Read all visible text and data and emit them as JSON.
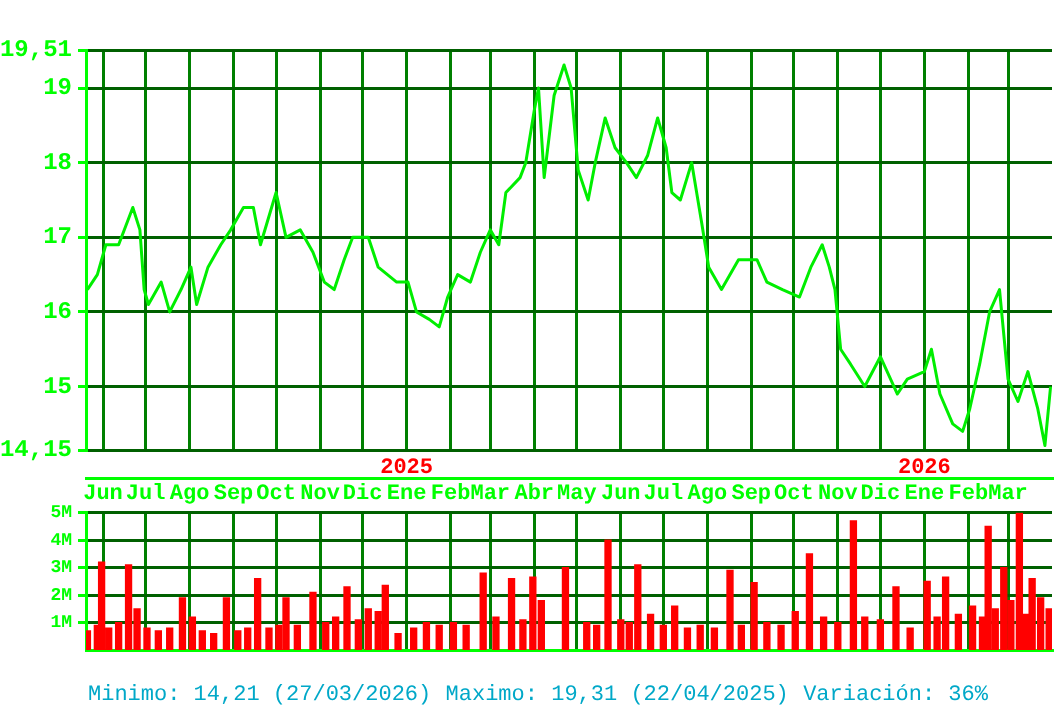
{
  "chart_data": [
    {
      "type": "line",
      "x": [
        "2024-05-21",
        "2024-05-28",
        "2024-06-03",
        "2024-06-12",
        "2024-06-22",
        "2024-06-27",
        "2024-06-30",
        "2024-07-03",
        "2024-07-12",
        "2024-07-18",
        "2024-07-26",
        "2024-08-02",
        "2024-08-06",
        "2024-08-14",
        "2024-08-23",
        "2024-08-30",
        "2024-09-08",
        "2024-09-15",
        "2024-09-20",
        "2024-10-01",
        "2024-10-08",
        "2024-10-18",
        "2024-10-27",
        "2024-11-04",
        "2024-11-11",
        "2024-11-18",
        "2024-11-24",
        "2024-12-05",
        "2024-12-12",
        "2024-12-25",
        "2025-01-02",
        "2025-01-08",
        "2025-01-17",
        "2025-01-24",
        "2025-01-30",
        "2025-02-06",
        "2025-02-15",
        "2025-02-22",
        "2025-03-01",
        "2025-03-07",
        "2025-03-12",
        "2025-03-22",
        "2025-03-26",
        "2025-04-01",
        "2025-04-04",
        "2025-04-08",
        "2025-04-15",
        "2025-04-22",
        "2025-04-27",
        "2025-05-02",
        "2025-05-09",
        "2025-05-14",
        "2025-05-21",
        "2025-05-28",
        "2025-06-05",
        "2025-06-12",
        "2025-06-20",
        "2025-06-27",
        "2025-07-03",
        "2025-07-07",
        "2025-07-13",
        "2025-07-21",
        "2025-07-28",
        "2025-08-02",
        "2025-08-11",
        "2025-08-23",
        "2025-09-05",
        "2025-09-12",
        "2025-09-23",
        "2025-10-05",
        "2025-10-13",
        "2025-10-21",
        "2025-10-26",
        "2025-10-30",
        "2025-11-03",
        "2025-11-10",
        "2025-11-20",
        "2025-12-01",
        "2025-12-13",
        "2025-12-20",
        "2026-01-01",
        "2026-01-06",
        "2026-01-12",
        "2026-01-21",
        "2026-01-28",
        "2026-02-02",
        "2026-02-09",
        "2026-02-16",
        "2026-02-23",
        "2026-03-01",
        "2026-03-08",
        "2026-03-15",
        "2026-03-22",
        "2026-03-27",
        "2026-03-31"
      ],
      "series": [
        {
          "color": "#00ee00",
          "values": [
            16.3,
            16.5,
            16.9,
            16.9,
            17.4,
            17.1,
            16.3,
            16.1,
            16.4,
            16.0,
            16.3,
            16.6,
            16.1,
            16.6,
            16.9,
            17.1,
            17.4,
            17.4,
            16.9,
            17.6,
            17.0,
            17.1,
            16.8,
            16.4,
            16.3,
            16.7,
            17.0,
            17.0,
            16.6,
            16.4,
            16.4,
            16.0,
            15.9,
            15.8,
            16.2,
            16.5,
            16.4,
            16.8,
            17.1,
            16.9,
            17.6,
            17.8,
            18.0,
            18.7,
            19.0,
            17.8,
            18.9,
            19.31,
            19.0,
            17.9,
            17.5,
            18.0,
            18.6,
            18.2,
            18.0,
            17.8,
            18.1,
            18.6,
            18.2,
            17.6,
            17.5,
            18.0,
            17.2,
            16.6,
            16.3,
            16.7,
            16.7,
            16.4,
            16.3,
            16.2,
            16.6,
            16.9,
            16.6,
            16.3,
            15.5,
            15.3,
            15.0,
            15.4,
            14.9,
            15.1,
            15.2,
            15.5,
            14.9,
            14.5,
            14.4,
            14.7,
            15.3,
            16.0,
            16.3,
            15.1,
            14.8,
            15.2,
            14.7,
            14.21,
            15.0
          ]
        }
      ],
      "xlim": [
        "2024-05-20",
        "2026-04-01"
      ],
      "xticks": [
        {
          "value": "2024-06-01",
          "label": "Jun"
        },
        {
          "value": "2024-07-01",
          "label": "Jul"
        },
        {
          "value": "2024-08-01",
          "label": "Ago"
        },
        {
          "value": "2024-09-01",
          "label": "Sep"
        },
        {
          "value": "2024-10-01",
          "label": "Oct"
        },
        {
          "value": "2024-11-01",
          "label": "Nov"
        },
        {
          "value": "2024-12-01",
          "label": "Dic"
        },
        {
          "value": "2025-01-01",
          "label": "Ene"
        },
        {
          "value": "2025-02-01",
          "label": "Feb"
        },
        {
          "value": "2025-03-01",
          "label": "Mar"
        },
        {
          "value": "2025-04-01",
          "label": "Abr"
        },
        {
          "value": "2025-05-01",
          "label": "May"
        },
        {
          "value": "2025-06-01",
          "label": "Jun"
        },
        {
          "value": "2025-07-01",
          "label": "Jul"
        },
        {
          "value": "2025-08-01",
          "label": "Ago"
        },
        {
          "value": "2025-09-01",
          "label": "Sep"
        },
        {
          "value": "2025-10-01",
          "label": "Oct"
        },
        {
          "value": "2025-11-01",
          "label": "Nov"
        },
        {
          "value": "2025-12-01",
          "label": "Dic"
        },
        {
          "value": "2026-01-01",
          "label": "Ene"
        },
        {
          "value": "2026-02-01",
          "label": "Feb"
        },
        {
          "value": "2026-03-01",
          "label": "Mar"
        }
      ],
      "ylim": [
        14.15,
        19.51
      ],
      "yticks": [
        {
          "value": 14.15,
          "label": "14,15"
        },
        15,
        16,
        17,
        18,
        19,
        {
          "value": 19.51,
          "label": "19,51"
        }
      ],
      "x2lim": [
        "2024-05-20",
        "2026-04-01"
      ],
      "x2ticks": [
        {
          "value": "2025-01-01",
          "label": "2025"
        },
        {
          "value": "2026-01-01",
          "label": "2026"
        }
      ],
      "grid": true
    },
    {
      "type": "bar",
      "x": [
        "2024-05-21",
        "2024-05-28",
        "2024-05-31",
        "2024-06-05",
        "2024-06-12",
        "2024-06-19",
        "2024-06-25",
        "2024-07-02",
        "2024-07-10",
        "2024-07-18",
        "2024-07-27",
        "2024-08-03",
        "2024-08-10",
        "2024-08-18",
        "2024-08-27",
        "2024-09-04",
        "2024-09-11",
        "2024-09-18",
        "2024-09-26",
        "2024-10-03",
        "2024-10-08",
        "2024-10-16",
        "2024-10-27",
        "2024-11-05",
        "2024-11-12",
        "2024-11-20",
        "2024-11-28",
        "2024-12-05",
        "2024-12-12",
        "2024-12-17",
        "2024-12-26",
        "2025-01-06",
        "2025-01-15",
        "2025-01-24",
        "2025-02-03",
        "2025-02-12",
        "2025-02-24",
        "2025-03-05",
        "2025-03-16",
        "2025-03-24",
        "2025-03-31",
        "2025-04-06",
        "2025-04-23",
        "2025-05-08",
        "2025-05-15",
        "2025-05-23",
        "2025-06-01",
        "2025-06-07",
        "2025-06-13",
        "2025-06-22",
        "2025-07-01",
        "2025-07-09",
        "2025-07-18",
        "2025-07-27",
        "2025-08-06",
        "2025-08-17",
        "2025-08-25",
        "2025-09-03",
        "2025-09-12",
        "2025-09-22",
        "2025-10-02",
        "2025-10-12",
        "2025-10-22",
        "2025-11-01",
        "2025-11-12",
        "2025-11-20",
        "2025-12-01",
        "2025-12-12",
        "2025-12-22",
        "2026-01-03",
        "2026-01-10",
        "2026-01-16",
        "2026-01-25",
        "2026-02-04",
        "2026-02-11",
        "2026-02-15",
        "2026-02-20",
        "2026-02-26",
        "2026-03-03",
        "2026-03-09",
        "2026-03-14",
        "2026-03-18",
        "2026-03-24",
        "2026-03-30"
      ],
      "series": [
        {
          "color": "#ff0000",
          "values": [
            700000,
            900000,
            3200000,
            800000,
            1000000,
            3100000,
            1500000,
            800000,
            700000,
            800000,
            1900000,
            1200000,
            700000,
            600000,
            1900000,
            700000,
            800000,
            2600000,
            800000,
            900000,
            1900000,
            900000,
            2100000,
            1000000,
            1200000,
            2300000,
            1100000,
            1500000,
            1400000,
            2350000,
            600000,
            800000,
            1000000,
            900000,
            1000000,
            900000,
            2800000,
            1200000,
            2600000,
            1100000,
            2650000,
            1800000,
            3000000,
            1000000,
            900000,
            4000000,
            1100000,
            1000000,
            3100000,
            1300000,
            900000,
            1600000,
            800000,
            900000,
            800000,
            2900000,
            900000,
            2450000,
            1000000,
            900000,
            1400000,
            3500000,
            1200000,
            1000000,
            4700000,
            1200000,
            1100000,
            2300000,
            800000,
            2500000,
            1200000,
            2650000,
            1300000,
            1600000,
            1200000,
            4500000,
            1500000,
            3000000,
            1800000,
            5000000,
            1300000,
            2600000,
            1900000,
            1500000
          ]
        }
      ],
      "xlim": [
        "2024-05-20",
        "2026-04-01"
      ],
      "xticks": [
        {
          "value": "2024-06-01",
          "label": null
        },
        {
          "value": "2024-07-01",
          "label": null
        },
        {
          "value": "2024-08-01",
          "label": null
        },
        {
          "value": "2024-09-01",
          "label": null
        },
        {
          "value": "2024-10-01",
          "label": null
        },
        {
          "value": "2024-11-01",
          "label": null
        },
        {
          "value": "2024-12-01",
          "label": null
        },
        {
          "value": "2025-01-01",
          "label": null
        },
        {
          "value": "2025-02-01",
          "label": null
        },
        {
          "value": "2025-03-01",
          "label": null
        },
        {
          "value": "2025-04-01",
          "label": null
        },
        {
          "value": "2025-05-01",
          "label": null
        },
        {
          "value": "2025-06-01",
          "label": null
        },
        {
          "value": "2025-07-01",
          "label": null
        },
        {
          "value": "2025-08-01",
          "label": null
        },
        {
          "value": "2025-09-01",
          "label": null
        },
        {
          "value": "2025-10-01",
          "label": null
        },
        {
          "value": "2025-11-01",
          "label": null
        },
        {
          "value": "2025-12-01",
          "label": null
        },
        {
          "value": "2026-01-01",
          "label": null
        },
        {
          "value": "2026-02-01",
          "label": null
        },
        {
          "value": "2026-03-01",
          "label": null
        }
      ],
      "ylim": [
        0,
        5000000
      ],
      "yticks": [
        {
          "value": 1000000,
          "label": "1M"
        },
        {
          "value": 2000000,
          "label": "2M"
        },
        {
          "value": 3000000,
          "label": "3M"
        },
        {
          "value": 4000000,
          "label": "4M"
        },
        {
          "value": 5000000,
          "label": "5M"
        }
      ],
      "grid": true,
      "tick_labels": "y",
      "annotations": [
        "Minimo: 14,21 (27/03/2026)",
        "Maximo: 19,31 (22/04/2025)",
        "Variación: 36%"
      ]
    }
  ]
}
